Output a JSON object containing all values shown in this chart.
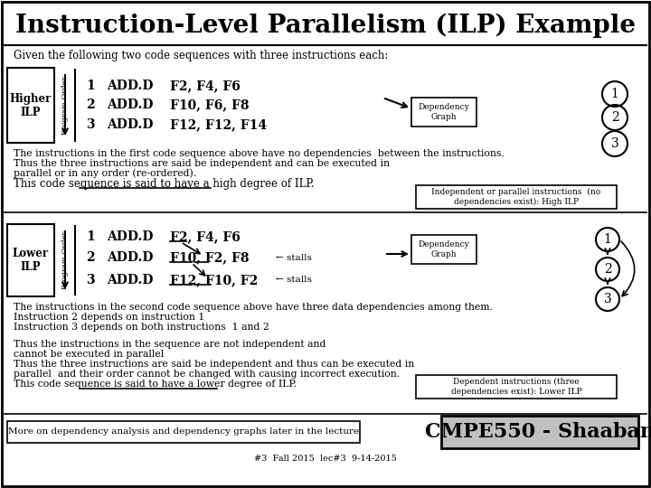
{
  "title": "Instruction-Level Parallelism (ILP) Example",
  "subtitle": "Given the following two code sequences with three instructions each:",
  "bg_color": "#ffffff",
  "title_fontsize": 20,
  "higher_ilp_label": "Higher\nILP",
  "lower_ilp_label": "Lower\nILP",
  "program_order_label": "Program Order",
  "higher_instructions": [
    [
      "1",
      "ADD.D",
      "F2, F4, F6"
    ],
    [
      "2",
      "ADD.D",
      "F10, F6, F8"
    ],
    [
      "3",
      "ADD.D",
      "F12, F12, F14"
    ]
  ],
  "lower_instructions": [
    [
      "1",
      "ADD.D",
      "F2, F4, F6"
    ],
    [
      "2",
      "ADD.D",
      "F10, F2, F8"
    ],
    [
      "3",
      "ADD.D",
      "F12, F10, F2"
    ]
  ],
  "dep_graph_label": "Dependency\nGraph",
  "higher_text": [
    "The instructions in the first code sequence above have no dependencies  between the instructions.",
    "Thus the three instructions are said be independent and can be executed in",
    "parallel or in any order (re-ordered).",
    "This code sequence is said to have a high degree of ILP."
  ],
  "high_ilp_box": "Independent or parallel instructions  (no\ndependencies exist): High ILP",
  "lower_text": [
    "The instructions in the second code sequence above have three data dependencies among them.",
    "Instruction 2 depends on instruction 1",
    "Instruction 3 depends on both instructions  1 and 2",
    "",
    "Thus the instructions in the sequence are not independent and",
    "cannot be executed in parallel",
    "Thus the three instructions are said be independent and thus can be executed in",
    "parallel  and their order cannot be changed with causing incorrect execution.",
    "This code sequence is said to have a lower degree of ILP."
  ],
  "low_ilp_box": "Dependent instructions (three\ndependencies exist): Lower ILP",
  "bottom_left_box": "More on dependency analysis and dependency graphs later in the lecture",
  "bottom_right_box": "CMPE550 - Shaaban",
  "footer": "#3  Fall 2015  lec#3  9-14-2015",
  "stalls": [
    "← stalls",
    "← stalls"
  ]
}
